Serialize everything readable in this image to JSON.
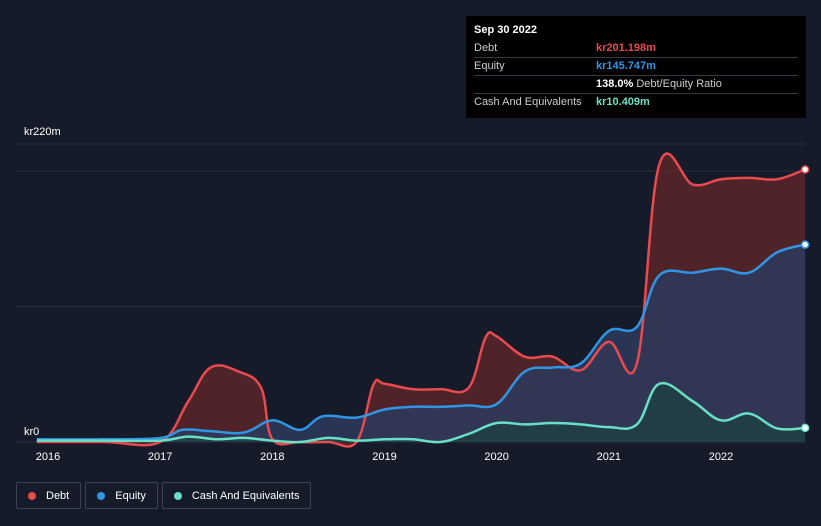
{
  "tooltip": {
    "date": "Sep 30 2022",
    "rows": [
      {
        "label": "Debt",
        "value": "kr201.198m",
        "color": "#e84a4f"
      },
      {
        "label": "Equity",
        "value": "kr145.747m",
        "color": "#2f95e4"
      },
      {
        "label": "",
        "value": "138.0%",
        "suffix": "Debt/Equity Ratio",
        "color": "#ffffff"
      },
      {
        "label": "Cash And Equivalents",
        "value": "kr10.409m",
        "color": "#69e0c5"
      }
    ]
  },
  "legend": [
    {
      "label": "Debt",
      "color": "#e84a4f"
    },
    {
      "label": "Equity",
      "color": "#2f95e4"
    },
    {
      "label": "Cash And Equivalents",
      "color": "#69e0c5"
    }
  ],
  "chart_data": {
    "type": "area",
    "y_top_label": "kr220m",
    "y_bottom_label": "kr0",
    "ylim": [
      0,
      220
    ],
    "xlim": [
      2015.9,
      2022.75
    ],
    "x_ticks": [
      {
        "x": 2016,
        "label": "2016"
      },
      {
        "x": 2017,
        "label": "2017"
      },
      {
        "x": 2018,
        "label": "2018"
      },
      {
        "x": 2019,
        "label": "2019"
      },
      {
        "x": 2020,
        "label": "2020"
      },
      {
        "x": 2021,
        "label": "2021"
      },
      {
        "x": 2022,
        "label": "2022"
      }
    ],
    "grid_y": [
      0,
      100,
      200,
      220
    ],
    "series": [
      {
        "name": "Debt",
        "color": "#e84a4f",
        "fill": "#5a2429",
        "points": [
          [
            2015.9,
            0
          ],
          [
            2016.5,
            0
          ],
          [
            2017.0,
            0
          ],
          [
            2017.25,
            30
          ],
          [
            2017.45,
            55
          ],
          [
            2017.7,
            52
          ],
          [
            2017.9,
            40
          ],
          [
            2018.0,
            2
          ],
          [
            2018.25,
            0
          ],
          [
            2018.5,
            0
          ],
          [
            2018.75,
            0
          ],
          [
            2018.9,
            42
          ],
          [
            2019.0,
            43
          ],
          [
            2019.25,
            39
          ],
          [
            2019.5,
            39
          ],
          [
            2019.75,
            40
          ],
          [
            2019.9,
            77
          ],
          [
            2020.0,
            78
          ],
          [
            2020.25,
            63
          ],
          [
            2020.5,
            63
          ],
          [
            2020.75,
            53
          ],
          [
            2021.0,
            74
          ],
          [
            2021.25,
            58
          ],
          [
            2021.45,
            205
          ],
          [
            2021.75,
            190
          ],
          [
            2022.0,
            194
          ],
          [
            2022.25,
            195
          ],
          [
            2022.5,
            194
          ],
          [
            2022.75,
            201.198
          ]
        ]
      },
      {
        "name": "Equity",
        "color": "#2f95e4",
        "fill": "#2c3a5c",
        "points": [
          [
            2015.9,
            2
          ],
          [
            2016.5,
            2
          ],
          [
            2017.0,
            3
          ],
          [
            2017.2,
            9
          ],
          [
            2017.45,
            8
          ],
          [
            2017.75,
            7
          ],
          [
            2018.0,
            16
          ],
          [
            2018.25,
            9
          ],
          [
            2018.45,
            19
          ],
          [
            2018.75,
            18
          ],
          [
            2019.0,
            24
          ],
          [
            2019.25,
            26
          ],
          [
            2019.5,
            26
          ],
          [
            2019.75,
            27
          ],
          [
            2020.0,
            28
          ],
          [
            2020.25,
            52
          ],
          [
            2020.5,
            55
          ],
          [
            2020.75,
            58
          ],
          [
            2021.0,
            82
          ],
          [
            2021.25,
            85
          ],
          [
            2021.45,
            123
          ],
          [
            2021.75,
            125
          ],
          [
            2022.0,
            128
          ],
          [
            2022.25,
            125
          ],
          [
            2022.5,
            140
          ],
          [
            2022.75,
            145.747
          ]
        ]
      },
      {
        "name": "Cash And Equivalents",
        "color": "#69e0c5",
        "fill": "#1f3e44",
        "points": [
          [
            2015.9,
            1
          ],
          [
            2016.5,
            1
          ],
          [
            2017.0,
            1
          ],
          [
            2017.25,
            4
          ],
          [
            2017.5,
            2
          ],
          [
            2017.75,
            3
          ],
          [
            2018.0,
            1
          ],
          [
            2018.25,
            0
          ],
          [
            2018.5,
            3
          ],
          [
            2018.75,
            1
          ],
          [
            2019.0,
            2
          ],
          [
            2019.25,
            2
          ],
          [
            2019.5,
            0
          ],
          [
            2019.75,
            6
          ],
          [
            2020.0,
            14
          ],
          [
            2020.25,
            13
          ],
          [
            2020.5,
            14
          ],
          [
            2020.75,
            13
          ],
          [
            2021.0,
            11
          ],
          [
            2021.25,
            13
          ],
          [
            2021.45,
            43
          ],
          [
            2021.75,
            30
          ],
          [
            2022.0,
            16
          ],
          [
            2022.25,
            21
          ],
          [
            2022.5,
            10
          ],
          [
            2022.75,
            10.409
          ]
        ]
      }
    ]
  }
}
